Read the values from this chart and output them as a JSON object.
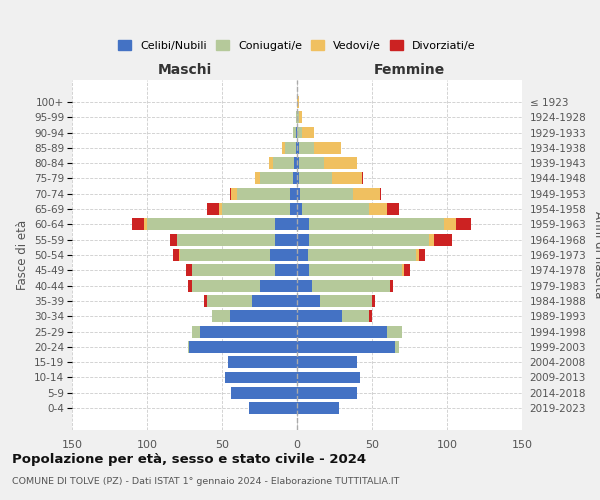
{
  "age_groups": [
    "0-4",
    "5-9",
    "10-14",
    "15-19",
    "20-24",
    "25-29",
    "30-34",
    "35-39",
    "40-44",
    "45-49",
    "50-54",
    "55-59",
    "60-64",
    "65-69",
    "70-74",
    "75-79",
    "80-84",
    "85-89",
    "90-94",
    "95-99",
    "100+"
  ],
  "birth_years": [
    "2019-2023",
    "2014-2018",
    "2009-2013",
    "2004-2008",
    "1999-2003",
    "1994-1998",
    "1989-1993",
    "1984-1988",
    "1979-1983",
    "1974-1978",
    "1969-1973",
    "1964-1968",
    "1959-1963",
    "1954-1958",
    "1949-1953",
    "1944-1948",
    "1939-1943",
    "1934-1938",
    "1929-1933",
    "1924-1928",
    "≤ 1923"
  ],
  "colors": {
    "celibe": "#4472c4",
    "coniugato": "#b5c99a",
    "vedovo": "#f0c060",
    "divorziato": "#cc2222"
  },
  "male": {
    "celibe": [
      32,
      44,
      48,
      46,
      72,
      65,
      45,
      30,
      25,
      15,
      18,
      15,
      15,
      5,
      5,
      3,
      2,
      1,
      1,
      0,
      0
    ],
    "coniugato": [
      0,
      0,
      0,
      0,
      1,
      5,
      12,
      30,
      45,
      55,
      60,
      65,
      85,
      45,
      35,
      22,
      14,
      7,
      2,
      1,
      0
    ],
    "vedovo": [
      0,
      0,
      0,
      0,
      0,
      0,
      0,
      0,
      0,
      0,
      1,
      0,
      2,
      2,
      4,
      3,
      3,
      2,
      0,
      0,
      0
    ],
    "divorziato": [
      0,
      0,
      0,
      0,
      0,
      0,
      0,
      2,
      3,
      4,
      4,
      5,
      8,
      8,
      1,
      0,
      0,
      0,
      0,
      0,
      0
    ]
  },
  "female": {
    "nubile": [
      28,
      40,
      42,
      40,
      65,
      60,
      30,
      15,
      10,
      8,
      7,
      8,
      8,
      3,
      2,
      1,
      1,
      1,
      0,
      0,
      0
    ],
    "coniugata": [
      0,
      0,
      0,
      0,
      3,
      10,
      18,
      35,
      52,
      62,
      72,
      80,
      90,
      45,
      35,
      22,
      17,
      10,
      3,
      1,
      0
    ],
    "vedova": [
      0,
      0,
      0,
      0,
      0,
      0,
      0,
      0,
      0,
      1,
      2,
      3,
      8,
      12,
      18,
      20,
      22,
      18,
      8,
      2,
      1
    ],
    "divorziata": [
      0,
      0,
      0,
      0,
      0,
      0,
      2,
      2,
      2,
      4,
      4,
      12,
      10,
      8,
      1,
      1,
      0,
      0,
      0,
      0,
      0
    ]
  },
  "xlim": 150,
  "title": "Popolazione per età, sesso e stato civile - 2024",
  "subtitle": "COMUNE DI TOLVE (PZ) - Dati ISTAT 1° gennaio 2024 - Elaborazione TUTTITALIA.IT",
  "xlabel_left": "Maschi",
  "xlabel_right": "Femmine",
  "ylabel_left": "Fasce di età",
  "ylabel_right": "Anni di nascita",
  "legend_labels": [
    "Celibi/Nubili",
    "Coniugati/e",
    "Vedovi/e",
    "Divorziati/e"
  ],
  "background_color": "#f0f0f0",
  "plot_bg_color": "#ffffff"
}
